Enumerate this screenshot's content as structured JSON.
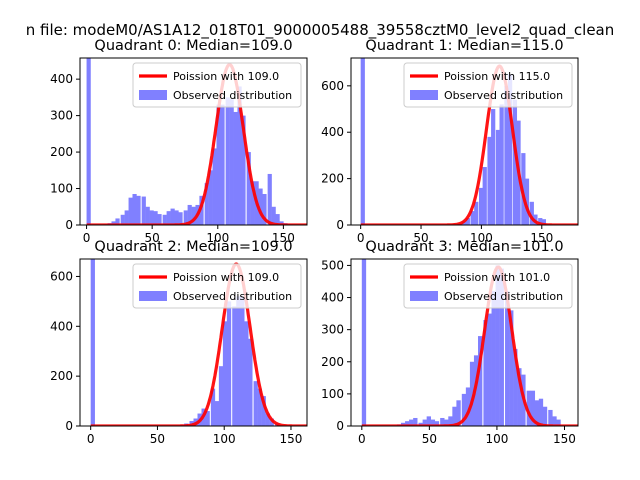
{
  "suptitle": "n file: modeM0/AS1A12_018T01_9000005488_39558cztM0_level2_quad_clean",
  "colors": {
    "observed": "#8080ff",
    "poisson": "#ff0000"
  },
  "chart_data": [
    {
      "type": "bar",
      "title": "Quadrant 0: Median=109.0",
      "median": 109.0,
      "xlim": [
        -5,
        168
      ],
      "ylim": [
        0,
        458
      ],
      "xticks": [
        0,
        50,
        100,
        150
      ],
      "yticks": [
        0,
        100,
        200,
        300,
        400
      ],
      "legend_position": "upper right",
      "legend": [
        "Poission with 109.0",
        "Observed distribution"
      ],
      "series": [
        {
          "name": "Observed distribution",
          "type": "histogram",
          "bin_width": 3.2,
          "x": [
            0,
            13,
            16,
            19,
            22,
            26,
            29,
            32,
            35,
            38,
            42,
            45,
            48,
            51,
            54,
            58,
            61,
            64,
            67,
            70,
            74,
            77,
            80,
            83,
            86,
            90,
            93,
            96,
            99,
            102,
            106,
            109,
            112,
            115,
            118,
            122,
            125,
            128,
            131,
            134,
            138,
            141,
            144,
            147,
            150,
            154
          ],
          "values": [
            460,
            2,
            5,
            10,
            18,
            28,
            40,
            75,
            85,
            80,
            78,
            50,
            40,
            38,
            30,
            28,
            38,
            45,
            40,
            35,
            40,
            55,
            50,
            55,
            80,
            115,
            150,
            210,
            330,
            330,
            350,
            345,
            310,
            380,
            300,
            200,
            120,
            120,
            100,
            85,
            140,
            50,
            30,
            10,
            5,
            2
          ]
        },
        {
          "name": "Poission with 109.0",
          "type": "line",
          "mean": 109.0,
          "scale": 440
        }
      ]
    },
    {
      "type": "bar",
      "title": "Quadrant 1: Median=115.0",
      "median": 115.0,
      "xlim": [
        -8,
        180
      ],
      "ylim": [
        0,
        720
      ],
      "xticks": [
        0,
        50,
        100,
        150
      ],
      "yticks": [
        0,
        200,
        400,
        600
      ],
      "legend_position": "upper right",
      "legend": [
        "Poission with 115.0",
        "Observed distribution"
      ],
      "series": [
        {
          "name": "Observed distribution",
          "type": "histogram",
          "bin_width": 3.5,
          "x": [
            0,
            80,
            84,
            87,
            91,
            94,
            98,
            101,
            105,
            108,
            112,
            115,
            119,
            122,
            126,
            129,
            133,
            136,
            140,
            143,
            147,
            150
          ],
          "values": [
            720,
            5,
            15,
            30,
            60,
            100,
            160,
            250,
            380,
            500,
            410,
            520,
            600,
            650,
            540,
            450,
            310,
            200,
            100,
            45,
            30,
            25
          ]
        },
        {
          "name": "Poission with 115.0",
          "type": "line",
          "mean": 115.0,
          "scale": 685
        }
      ]
    },
    {
      "type": "bar",
      "title": "Quadrant 2: Median=109.0",
      "median": 109.0,
      "xlim": [
        -8,
        162
      ],
      "ylim": [
        0,
        670
      ],
      "xticks": [
        0,
        50,
        100,
        150
      ],
      "yticks": [
        0,
        200,
        400,
        600
      ],
      "legend_position": "upper right",
      "legend": [
        "Poission with 109.0",
        "Observed distribution"
      ],
      "series": [
        {
          "name": "Observed distribution",
          "type": "histogram",
          "bin_width": 3.2,
          "x": [
            0,
            67,
            70,
            74,
            77,
            80,
            83,
            86,
            90,
            93,
            96,
            99,
            102,
            106,
            109,
            112,
            115,
            118,
            122,
            125,
            128,
            131,
            134,
            138
          ],
          "values": [
            670,
            5,
            10,
            20,
            30,
            50,
            70,
            60,
            150,
            100,
            240,
            420,
            500,
            480,
            520,
            520,
            420,
            350,
            180,
            150,
            120,
            50,
            30,
            10
          ]
        },
        {
          "name": "Poission with 109.0",
          "type": "line",
          "mean": 109.0,
          "scale": 650
        }
      ]
    },
    {
      "type": "bar",
      "title": "Quadrant 3: Median=101.0",
      "median": 101.0,
      "xlim": [
        -8,
        160
      ],
      "ylim": [
        0,
        520
      ],
      "xticks": [
        0,
        50,
        100,
        150
      ],
      "yticks": [
        0,
        100,
        200,
        300,
        400,
        500
      ],
      "legend_position": "upper right",
      "legend": [
        "Poission with 101.0",
        "Observed distribution"
      ],
      "series": [
        {
          "name": "Observed distribution",
          "type": "histogram",
          "bin_width": 3.2,
          "x": [
            0,
            26,
            29,
            32,
            35,
            38,
            42,
            45,
            48,
            51,
            54,
            58,
            61,
            64,
            67,
            70,
            74,
            77,
            80,
            83,
            86,
            90,
            93,
            96,
            99,
            102,
            106,
            109,
            112,
            115,
            118,
            122,
            125,
            128,
            131,
            134,
            138,
            141,
            144
          ],
          "values": [
            520,
            5,
            10,
            15,
            20,
            25,
            10,
            20,
            30,
            20,
            15,
            25,
            20,
            30,
            60,
            80,
            100,
            120,
            200,
            220,
            280,
            330,
            350,
            420,
            500,
            490,
            420,
            360,
            240,
            180,
            160,
            110,
            110,
            80,
            85,
            60,
            50,
            30,
            20
          ]
        },
        {
          "name": "Poission with 101.0",
          "type": "line",
          "mean": 101.0,
          "scale": 495
        }
      ]
    }
  ]
}
